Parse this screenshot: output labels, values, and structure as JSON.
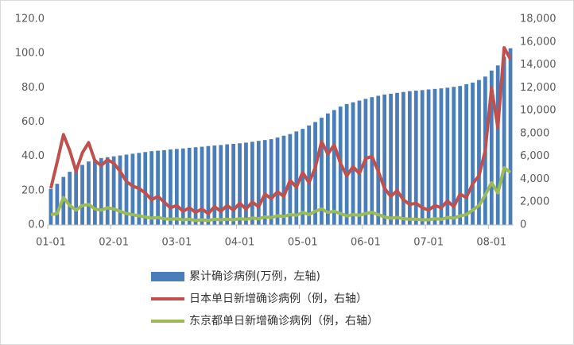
{
  "chart_data": {
    "type": "combo",
    "categories": [
      "01-01",
      null,
      null,
      null,
      null,
      null,
      null,
      null,
      null,
      null,
      "02-01",
      null,
      null,
      null,
      null,
      null,
      null,
      null,
      null,
      null,
      "03-01",
      null,
      null,
      null,
      null,
      null,
      null,
      null,
      null,
      null,
      "04-01",
      null,
      null,
      null,
      null,
      null,
      null,
      null,
      null,
      null,
      "05-01",
      null,
      null,
      null,
      null,
      null,
      null,
      null,
      null,
      null,
      "06-01",
      null,
      null,
      null,
      null,
      null,
      null,
      null,
      null,
      null,
      "07-01",
      null,
      null,
      null,
      null,
      null,
      null,
      null,
      null,
      null,
      "08-01",
      null,
      null,
      null
    ],
    "series": [
      {
        "name": "累计确诊病例(万例，左轴)",
        "type": "bar",
        "color": "#4a7ebb",
        "values": [
          21,
          24,
          28,
          31,
          33,
          35,
          37,
          38,
          39,
          39.5,
          40,
          40.5,
          41,
          41.5,
          42,
          42.5,
          43,
          43.3,
          43.6,
          44,
          44.3,
          44.6,
          45,
          45.3,
          45.6,
          46,
          46.3,
          46.6,
          47,
          47.3,
          47.6,
          48,
          48.5,
          49,
          49.5,
          50,
          51,
          52,
          53,
          54.5,
          56,
          58,
          60,
          62.5,
          65,
          67,
          69,
          70.5,
          71.5,
          72.5,
          73.5,
          74.5,
          75.3,
          76,
          76.5,
          77,
          77.5,
          78,
          78.3,
          78.6,
          79,
          79.3,
          79.6,
          80,
          80.5,
          81,
          82,
          83,
          84.5,
          86.5,
          90,
          93,
          98,
          103
        ]
      },
      {
        "name": "日本单日新增确诊病例（例，右轴）",
        "type": "line",
        "axis": "y2",
        "color": "#c0504d",
        "values": [
          3200,
          5500,
          7900,
          6500,
          4700,
          6300,
          7200,
          5600,
          5200,
          5700,
          5400,
          4700,
          3800,
          3400,
          3200,
          2800,
          2200,
          2500,
          2000,
          1500,
          1700,
          1200,
          1500,
          1100,
          1400,
          1000,
          1600,
          1200,
          1700,
          1300,
          1900,
          1400,
          2000,
          1600,
          2700,
          2300,
          2900,
          2500,
          3900,
          3300,
          4600,
          3700,
          5000,
          7300,
          6200,
          7000,
          5400,
          4300,
          5100,
          4500,
          5800,
          6000,
          4700,
          3200,
          2500,
          3000,
          2200,
          1800,
          1900,
          1500,
          1300,
          1700,
          1500,
          2100,
          1600,
          2700,
          2400,
          3600,
          4300,
          6500,
          12000,
          8500,
          15500,
          14500
        ]
      },
      {
        "name": "东京都单日新增确诊病例（例，右轴）",
        "type": "line",
        "axis": "y2",
        "color": "#9bbb59",
        "values": [
          900,
          1000,
          2400,
          1700,
          1300,
          1700,
          1800,
          1400,
          1300,
          1500,
          1400,
          1200,
          1000,
          900,
          800,
          700,
          600,
          650,
          550,
          500,
          550,
          450,
          500,
          400,
          450,
          400,
          500,
          450,
          500,
          450,
          550,
          500,
          600,
          550,
          700,
          650,
          800,
          750,
          900,
          850,
          1100,
          900,
          1200,
          1400,
          1100,
          1200,
          1000,
          800,
          900,
          850,
          1000,
          1100,
          900,
          700,
          600,
          650,
          550,
          500,
          500,
          450,
          450,
          550,
          500,
          650,
          600,
          800,
          900,
          1300,
          1700,
          2600,
          3700,
          2800,
          5000,
          4600
        ]
      }
    ],
    "ylim": [
      0,
      120
    ],
    "yticks": [
      {
        "value": 0,
        "label": "0.0"
      },
      {
        "value": 20,
        "label": "20.0"
      },
      {
        "value": 40,
        "label": "40.0"
      },
      {
        "value": 60,
        "label": "60.0"
      },
      {
        "value": 80,
        "label": "80.0"
      },
      {
        "value": 100,
        "label": "100.0"
      },
      {
        "value": 120,
        "label": "120.0"
      }
    ],
    "y2lim": [
      0,
      18000
    ],
    "y2ticks": [
      0,
      {
        "value": 2000,
        "label": "2,000"
      },
      {
        "value": 4000,
        "label": "4,000"
      },
      {
        "value": 6000,
        "label": "6,000"
      },
      {
        "value": 8000,
        "label": "8,000"
      },
      {
        "value": 10000,
        "label": "10,000"
      },
      {
        "value": 12000,
        "label": "12,000"
      },
      {
        "value": 14000,
        "label": "14,000"
      },
      {
        "value": 16000,
        "label": "16,000"
      },
      {
        "value": 18000,
        "label": "18,000"
      }
    ],
    "grid": false
  }
}
